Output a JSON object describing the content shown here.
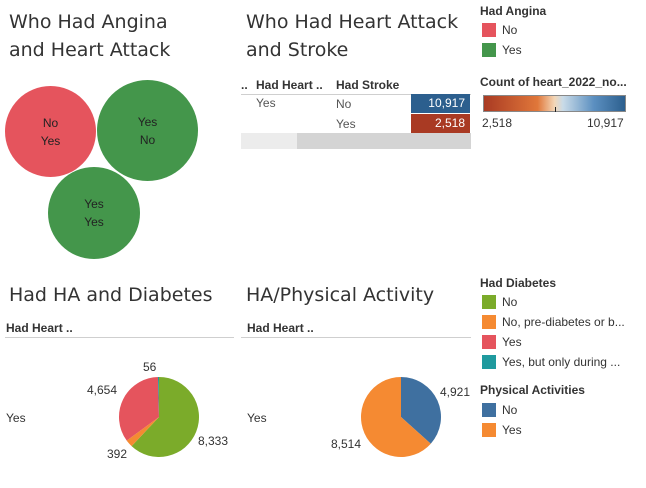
{
  "panels": {
    "bubble": {
      "title_line1": "Who Had Angina",
      "title_line2": "and Heart Attack",
      "bubbles": [
        {
          "line1": "No",
          "line2": "Yes",
          "color": "#e5545d"
        },
        {
          "line1": "Yes",
          "line2": "No",
          "color": "#44964b"
        },
        {
          "line1": "Yes",
          "line2": "Yes",
          "color": "#44964b"
        }
      ]
    },
    "heatmap": {
      "title_line1": "Who Had Heart Attack",
      "title_line2": "and Stroke",
      "col_marker": "..",
      "col_heart": "Had Heart ..",
      "col_stroke": "Had Stroke",
      "row_heart": "Yes",
      "row1_stroke": "No",
      "row2_stroke": "Yes",
      "row1_value": "10,917",
      "row2_value": "2,518",
      "row1_color": "#2c5f8e",
      "row2_color": "#a93a23"
    },
    "diabetes": {
      "title": "Had HA and Diabetes",
      "header": "Had Heart ..",
      "row_label": "Yes"
    },
    "physical": {
      "title": "HA/Physical Activity",
      "header": "Had Heart ..",
      "row_label": "Yes"
    }
  },
  "legends": {
    "angina": {
      "title": "Had Angina",
      "items": [
        {
          "label": "No",
          "color": "#e5545d"
        },
        {
          "label": "Yes",
          "color": "#44964b"
        }
      ]
    },
    "count": {
      "title": "Count of heart_2022_no...",
      "min_label": "2,518",
      "max_label": "10,917"
    },
    "diabetes": {
      "title": "Had Diabetes",
      "items": [
        {
          "label": "No",
          "color": "#7bab2a"
        },
        {
          "label": "No, pre-diabetes or b...",
          "color": "#f58a32"
        },
        {
          "label": "Yes",
          "color": "#e5545d"
        },
        {
          "label": "Yes, but only during ...",
          "color": "#1f9a9e"
        }
      ]
    },
    "activity": {
      "title": "Physical Activities",
      "items": [
        {
          "label": "No",
          "color": "#3f70a0"
        },
        {
          "label": "Yes",
          "color": "#f58a32"
        }
      ]
    }
  },
  "chart_data": [
    {
      "type": "pie",
      "title": "Had HA and Diabetes",
      "categories": [
        "No",
        "No, pre-diabetes or b...",
        "Yes",
        "Yes, but only during ..."
      ],
      "values": [
        8333,
        392,
        4654,
        56
      ],
      "labels": [
        "8,333",
        "392",
        "4,654",
        "56"
      ],
      "colors": [
        "#7bab2a",
        "#f58a32",
        "#e5545d",
        "#1f9a9e"
      ]
    },
    {
      "type": "pie",
      "title": "HA/Physical Activity",
      "categories": [
        "No",
        "Yes"
      ],
      "values": [
        4921,
        8514
      ],
      "labels": [
        "4,921",
        "8,514"
      ],
      "colors": [
        "#3f70a0",
        "#f58a32"
      ]
    }
  ]
}
